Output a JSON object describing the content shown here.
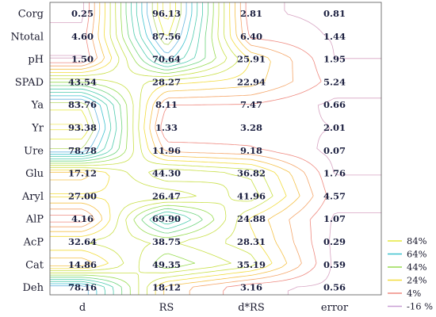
{
  "chart_data": {
    "type": "heatmap",
    "columns": [
      "d",
      "RS",
      "d*RS",
      "error"
    ],
    "rows": [
      "Corg",
      "Ntotal",
      "pH",
      "SPAD",
      "Ya",
      "Yr",
      "Ure",
      "Glu",
      "Aryl",
      "AlP",
      "AcP",
      "Cat",
      "Deh"
    ],
    "values": [
      [
        "0.25",
        "96.13",
        "2.81",
        "0.81"
      ],
      [
        "4.60",
        "87.56",
        "6.40",
        "1.44"
      ],
      [
        "1.50",
        "70.64",
        "25.91",
        "1.95"
      ],
      [
        "43.54",
        "28.27",
        "22.94",
        "5.24"
      ],
      [
        "83.76",
        "8.11",
        "7.47",
        "0.66"
      ],
      [
        "93.38",
        "1.33",
        "3.28",
        "2.01"
      ],
      [
        "78.78",
        "11.96",
        "9.18",
        "0.07"
      ],
      [
        "17.12",
        "44.30",
        "36.82",
        "1.76"
      ],
      [
        "27.00",
        "26.47",
        "41.96",
        "4.57"
      ],
      [
        "4.16",
        "69.90",
        "24.88",
        "1.07"
      ],
      [
        "32.64",
        "38.75",
        "28.31",
        "0.29"
      ],
      [
        "14.86",
        "49.35",
        "35.19",
        "0.59"
      ],
      [
        "78.16",
        "18.12",
        "3.16",
        "0.56"
      ]
    ],
    "legend": {
      "placement": "bottom-right",
      "items": [
        {
          "label": "84%",
          "color": "#e6e83a"
        },
        {
          "label": "64%",
          "color": "#3ec2cf"
        },
        {
          "label": "44%",
          "color": "#98dc52"
        },
        {
          "label": "24%",
          "color": "#f2dc3c"
        },
        {
          "label": "4%",
          "color": "#ef8a80"
        },
        {
          "label": "-16 %",
          "color": "#c9a0d6"
        }
      ]
    },
    "grid": false
  }
}
